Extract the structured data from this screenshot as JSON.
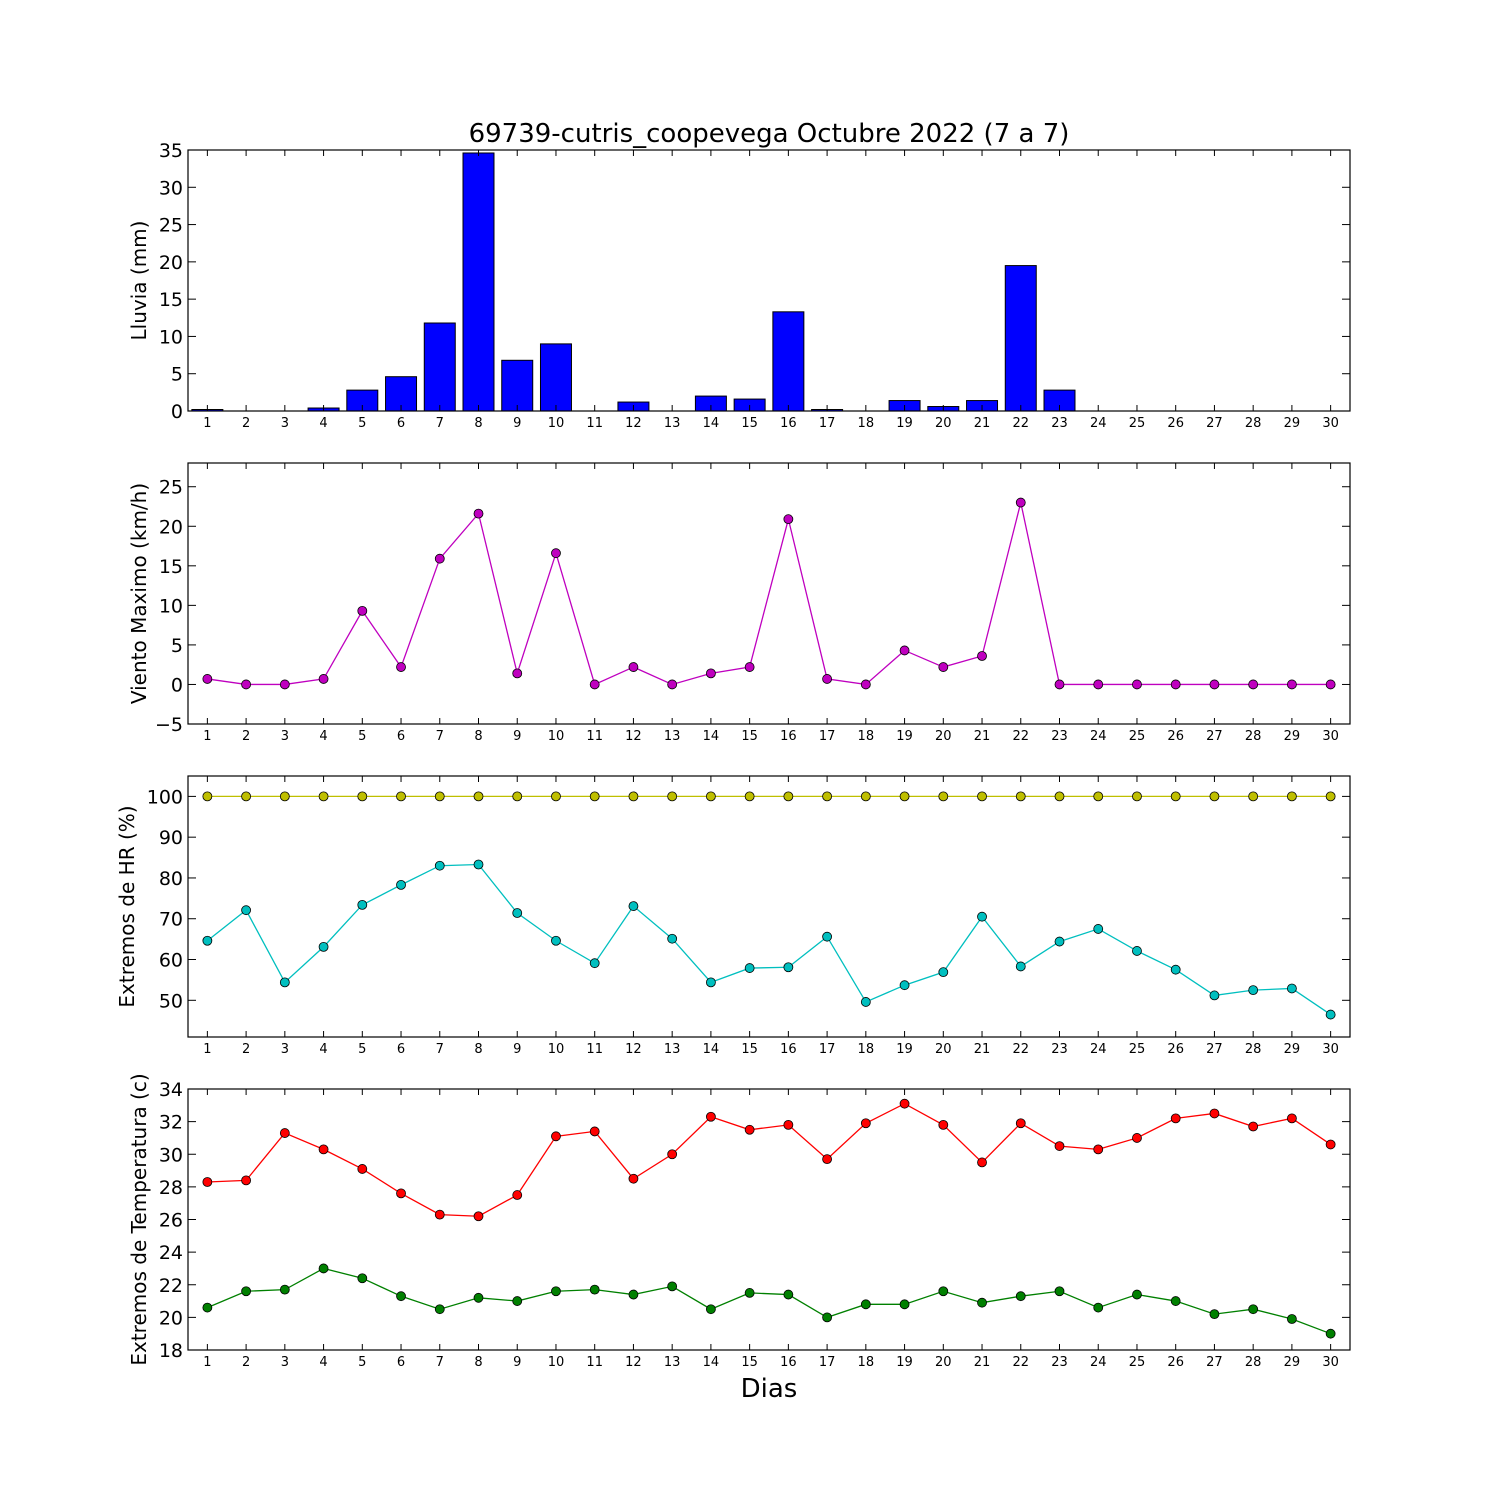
{
  "title": "69739-cutris_coopevega Octubre 2022  (7 a 7)",
  "xlabel": "Dias",
  "chart_data": [
    {
      "type": "bar",
      "ylabel": "Lluvia (mm)",
      "ylim": [
        0,
        35
      ],
      "yticks": [
        0,
        5,
        10,
        15,
        20,
        25,
        30,
        35
      ],
      "categories": [
        "1",
        "2",
        "3",
        "4",
        "5",
        "6",
        "7",
        "8",
        "9",
        "10",
        "11",
        "12",
        "13",
        "14",
        "15",
        "16",
        "17",
        "18",
        "19",
        "20",
        "21",
        "22",
        "23",
        "24",
        "25",
        "26",
        "27",
        "28",
        "29",
        "30"
      ],
      "series": [
        {
          "color": "#0000ff",
          "values": [
            0.2,
            0,
            0,
            0.4,
            2.8,
            4.6,
            11.8,
            34.6,
            6.8,
            9.0,
            0,
            1.2,
            0,
            2.0,
            1.6,
            13.3,
            0.2,
            0,
            1.4,
            0.6,
            1.4,
            19.5,
            2.8,
            0,
            0,
            0,
            0,
            0,
            0,
            0
          ]
        }
      ]
    },
    {
      "type": "line",
      "ylabel": "Viento Maximo (km/h)",
      "ylim": [
        -5,
        28
      ],
      "yticks": [
        -5,
        0,
        5,
        10,
        15,
        20,
        25
      ],
      "categories": [
        "1",
        "2",
        "3",
        "4",
        "5",
        "6",
        "7",
        "8",
        "9",
        "10",
        "11",
        "12",
        "13",
        "14",
        "15",
        "16",
        "17",
        "18",
        "19",
        "20",
        "21",
        "22",
        "23",
        "24",
        "25",
        "26",
        "27",
        "28",
        "29",
        "30"
      ],
      "series": [
        {
          "color": "#bf00bf",
          "values": [
            0.7,
            0,
            0,
            0.7,
            9.3,
            2.2,
            15.9,
            21.6,
            1.4,
            16.6,
            0,
            2.2,
            0,
            1.4,
            2.2,
            20.9,
            0.7,
            0,
            4.3,
            2.2,
            3.6,
            23.0,
            0,
            0,
            0,
            0,
            0,
            0,
            0,
            0
          ]
        }
      ]
    },
    {
      "type": "line",
      "ylabel": "Extremos de HR (%)",
      "ylim": [
        41,
        105
      ],
      "yticks": [
        50,
        60,
        70,
        80,
        90,
        100
      ],
      "categories": [
        "1",
        "2",
        "3",
        "4",
        "5",
        "6",
        "7",
        "8",
        "9",
        "10",
        "11",
        "12",
        "13",
        "14",
        "15",
        "16",
        "17",
        "18",
        "19",
        "20",
        "21",
        "22",
        "23",
        "24",
        "25",
        "26",
        "27",
        "28",
        "29",
        "30"
      ],
      "series": [
        {
          "color": "#bfbf00",
          "values": [
            100,
            100,
            100,
            100,
            100,
            100,
            100,
            100,
            100,
            100,
            100,
            100,
            100,
            100,
            100,
            100,
            100,
            100,
            100,
            100,
            100,
            100,
            100,
            100,
            100,
            100,
            100,
            100,
            100,
            100
          ]
        },
        {
          "color": "#00bfbf",
          "values": [
            64.6,
            72.1,
            54.4,
            63.1,
            73.4,
            78.3,
            83.0,
            83.3,
            71.4,
            64.6,
            59.1,
            73.1,
            65.1,
            54.4,
            57.9,
            58.1,
            65.6,
            49.6,
            53.7,
            56.9,
            70.5,
            58.3,
            64.4,
            67.5,
            62.1,
            57.5,
            51.2,
            52.5,
            52.9,
            46.5
          ]
        }
      ]
    },
    {
      "type": "line",
      "ylabel": "Extremos de Temperatura (c)",
      "ylim": [
        18,
        34
      ],
      "yticks": [
        18,
        20,
        22,
        24,
        26,
        28,
        30,
        32,
        34
      ],
      "categories": [
        "1",
        "2",
        "3",
        "4",
        "5",
        "6",
        "7",
        "8",
        "9",
        "10",
        "11",
        "12",
        "13",
        "14",
        "15",
        "16",
        "17",
        "18",
        "19",
        "20",
        "21",
        "22",
        "23",
        "24",
        "25",
        "26",
        "27",
        "28",
        "29",
        "30"
      ],
      "series": [
        {
          "color": "#ff0000",
          "values": [
            28.3,
            28.4,
            31.3,
            30.3,
            29.1,
            27.6,
            26.3,
            26.2,
            27.5,
            31.1,
            31.4,
            28.5,
            30.0,
            32.3,
            31.5,
            31.8,
            29.7,
            31.9,
            33.1,
            31.8,
            29.5,
            31.9,
            30.5,
            30.3,
            31.0,
            32.2,
            32.5,
            31.7,
            32.2,
            30.6
          ]
        },
        {
          "color": "#008000",
          "values": [
            20.6,
            21.6,
            21.7,
            23.0,
            22.4,
            21.3,
            20.5,
            21.2,
            21.0,
            21.6,
            21.7,
            21.4,
            21.9,
            20.5,
            21.5,
            21.4,
            20.0,
            20.8,
            20.8,
            21.6,
            20.9,
            21.3,
            21.6,
            20.6,
            21.4,
            21.0,
            20.2,
            20.5,
            19.9,
            19.0
          ]
        }
      ]
    }
  ]
}
